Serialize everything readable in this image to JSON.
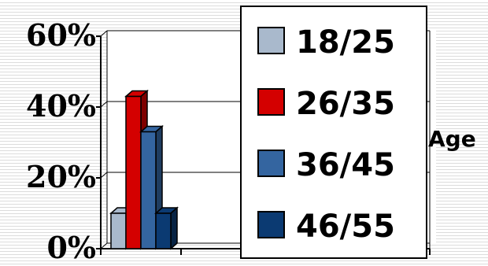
{
  "chart_data": {
    "type": "bar",
    "categories": [
      ""
    ],
    "series": [
      {
        "name": "18/25",
        "values": [
          10
        ],
        "color": "#a9b9cc"
      },
      {
        "name": "26/35",
        "values": [
          43
        ],
        "color": "#d40000"
      },
      {
        "name": "36/45",
        "values": [
          33
        ],
        "color": "#3465a0"
      },
      {
        "name": "46/55",
        "values": [
          10
        ],
        "color": "#0b3a72"
      }
    ],
    "ylim": [
      0,
      60
    ],
    "yticks": [
      0,
      20,
      40,
      60
    ],
    "ytick_labels": [
      "0%",
      "20%",
      "40%",
      "60%"
    ],
    "legend_title": "Age",
    "legend_placement": "right",
    "grid": true,
    "style": "3d"
  }
}
